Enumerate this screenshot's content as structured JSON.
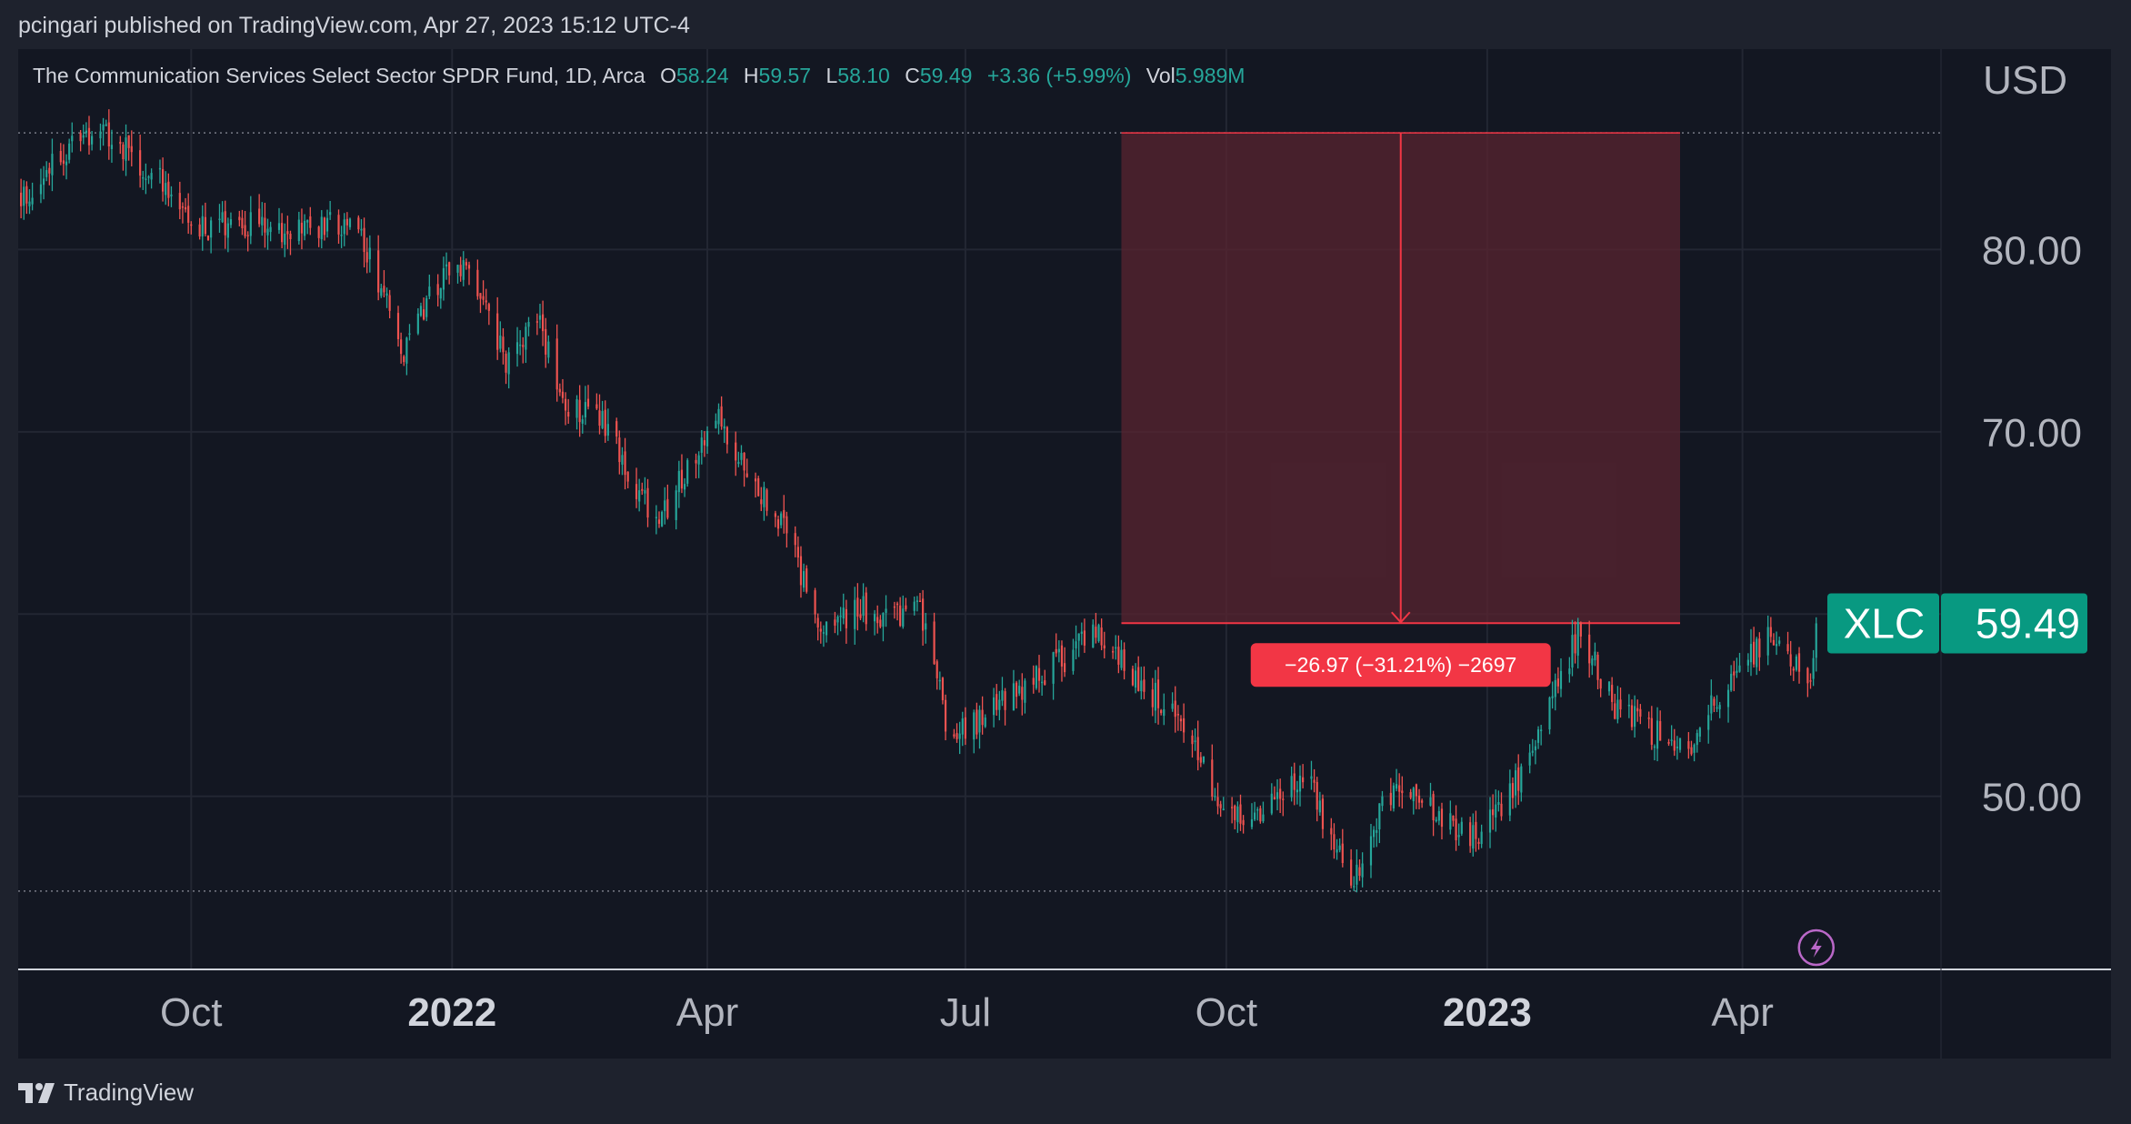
{
  "publisher_line": "pcingari published on TradingView.com, Apr 27, 2023 15:12 UTC-4",
  "legend": {
    "name": "The Communication Services Select Sector SPDR Fund, 1D, Arca",
    "o_label": "O",
    "o_value": "58.24",
    "h_label": "H",
    "h_value": "59.57",
    "l_label": "L",
    "l_value": "58.10",
    "c_label": "C",
    "c_value": "59.49",
    "change": "+3.36 (+5.99%)",
    "vol_label": "Vol",
    "vol_value": "5.989M"
  },
  "currency": "USD",
  "ticker_badge": {
    "symbol": "XLC",
    "price": "59.49"
  },
  "measure_label": "−26.97 (−31.21%) −2697",
  "footer_brand": "TradingView",
  "colors": {
    "up": "#26a69a",
    "down": "#ef5350",
    "measure_fill": "#5a2430",
    "measure_line": "#f23645",
    "badge": "#089981"
  },
  "chart_data": {
    "type": "candlestick",
    "symbol": "XLC",
    "timeframe": "1D",
    "x_range": [
      "2021-08-01",
      "2023-06-10"
    ],
    "y_range": [
      40.5,
      91
    ],
    "x_tick_labels": [
      {
        "date": "2021-10-01",
        "label": "Oct",
        "bold": false
      },
      {
        "date": "2022-01-01",
        "label": "2022",
        "bold": true
      },
      {
        "date": "2022-04-01",
        "label": "Apr",
        "bold": false
      },
      {
        "date": "2022-07-01",
        "label": "Jul",
        "bold": false
      },
      {
        "date": "2022-10-01",
        "label": "Oct",
        "bold": false
      },
      {
        "date": "2023-01-01",
        "label": "2023",
        "bold": true
      },
      {
        "date": "2023-04-01",
        "label": "Apr",
        "bold": false
      }
    ],
    "y_ticks": [
      50,
      60,
      70,
      80
    ],
    "y_tick_labels": [
      "50.00",
      "60.00",
      "70.00",
      "80.00"
    ],
    "last_price": 59.49,
    "high_marker": 86.4,
    "low_marker": 44.8,
    "measure": {
      "from_date": "2022-08-25",
      "to_date": "2023-03-10",
      "from_price": 86.4,
      "to_price": 59.5
    },
    "path": [
      [
        "2021-08-02",
        83.0
      ],
      [
        "2021-08-20",
        85.5
      ],
      [
        "2021-09-01",
        86.3
      ],
      [
        "2021-09-20",
        84.0
      ],
      [
        "2021-10-01",
        81.0
      ],
      [
        "2021-10-20",
        81.5
      ],
      [
        "2021-11-05",
        81.0
      ],
      [
        "2021-11-20",
        81.5
      ],
      [
        "2021-12-01",
        80.5
      ],
      [
        "2021-12-15",
        74.5
      ],
      [
        "2021-12-28",
        78.5
      ],
      [
        "2022-01-05",
        79.0
      ],
      [
        "2022-01-20",
        74.0
      ],
      [
        "2022-02-01",
        76.0
      ],
      [
        "2022-02-10",
        71.5
      ],
      [
        "2022-02-25",
        70.5
      ],
      [
        "2022-03-05",
        67.0
      ],
      [
        "2022-03-15",
        65.0
      ],
      [
        "2022-04-01",
        70.0
      ],
      [
        "2022-04-05",
        70.5
      ],
      [
        "2022-04-20",
        66.5
      ],
      [
        "2022-05-01",
        64.0
      ],
      [
        "2022-05-10",
        59.0
      ],
      [
        "2022-05-25",
        60.5
      ],
      [
        "2022-06-01",
        59.5
      ],
      [
        "2022-06-15",
        60.5
      ],
      [
        "2022-06-25",
        53.5
      ],
      [
        "2022-07-05",
        54.0
      ],
      [
        "2022-07-20",
        56.0
      ],
      [
        "2022-08-05",
        57.5
      ],
      [
        "2022-08-15",
        59.5
      ],
      [
        "2022-09-01",
        56.0
      ],
      [
        "2022-09-15",
        54.5
      ],
      [
        "2022-10-01",
        48.5
      ],
      [
        "2022-10-15",
        49.5
      ],
      [
        "2022-10-30",
        51.0
      ],
      [
        "2022-11-05",
        48.5
      ],
      [
        "2022-11-15",
        45.3
      ],
      [
        "2022-11-25",
        49.5
      ],
      [
        "2022-12-05",
        50.5
      ],
      [
        "2022-12-15",
        49.0
      ],
      [
        "2022-12-25",
        47.5
      ],
      [
        "2023-01-05",
        49.0
      ],
      [
        "2023-01-20",
        53.5
      ],
      [
        "2023-02-02",
        59.0
      ],
      [
        "2023-02-15",
        55.0
      ],
      [
        "2023-03-01",
        53.5
      ],
      [
        "2023-03-15",
        53.0
      ],
      [
        "2023-03-25",
        56.0
      ],
      [
        "2023-04-10",
        58.5
      ],
      [
        "2023-04-20",
        57.5
      ],
      [
        "2023-04-25",
        56.0
      ],
      [
        "2023-04-27",
        59.49
      ]
    ]
  }
}
